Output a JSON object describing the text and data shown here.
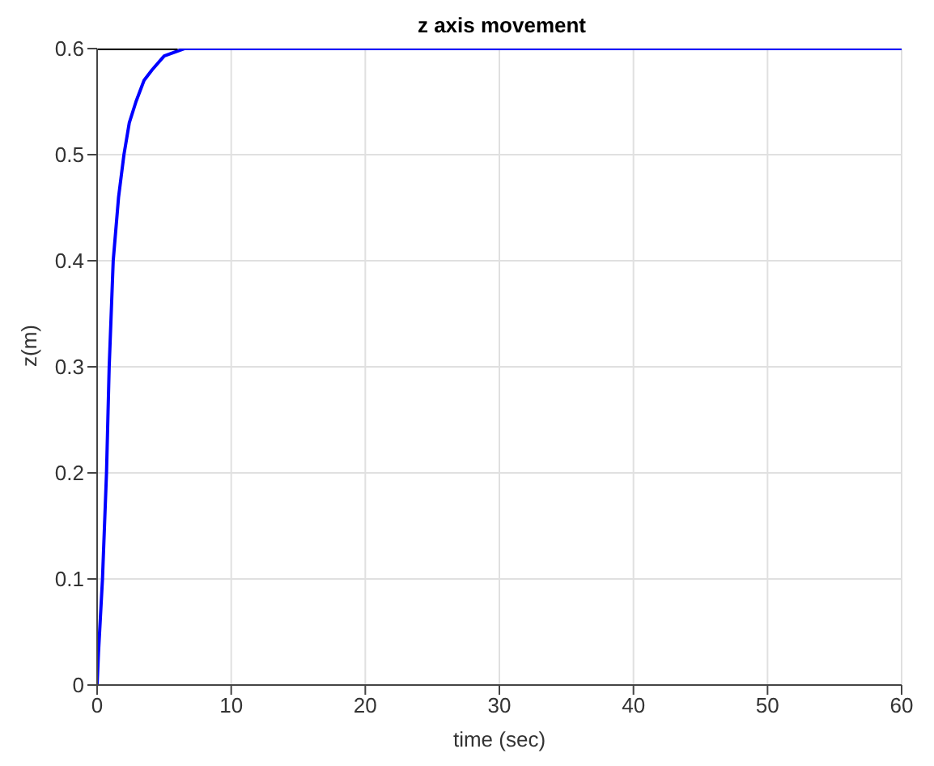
{
  "chart_data": {
    "type": "line",
    "title": "z axis movement",
    "xlabel": "time (sec)",
    "ylabel": "z(m)",
    "xlim": [
      0,
      60
    ],
    "xticks": [
      0,
      10,
      20,
      30,
      40,
      50,
      60
    ],
    "ylim": [
      0,
      0.6
    ],
    "yticks": [
      0,
      0.1,
      0.2,
      0.3,
      0.4,
      0.5,
      0.6
    ],
    "grid": true,
    "marker": "none",
    "line_style": "solid",
    "series": [
      {
        "color": "#0000ff",
        "x": [
          0,
          0.1,
          0.4,
          0.7,
          0.9,
          1.2,
          1.6,
          2.0,
          2.4,
          2.9,
          3.5,
          4.1,
          5,
          6.5,
          8,
          60
        ],
        "values": [
          0,
          0.03,
          0.1,
          0.2,
          0.3,
          0.4,
          0.46,
          0.5,
          0.53,
          0.55,
          0.57,
          0.58,
          0.593,
          0.6,
          0.6,
          0.6
        ]
      },
      {
        "color": "#000000",
        "x": [
          0,
          6
        ],
        "values": [
          0.6,
          0.6
        ]
      }
    ]
  }
}
